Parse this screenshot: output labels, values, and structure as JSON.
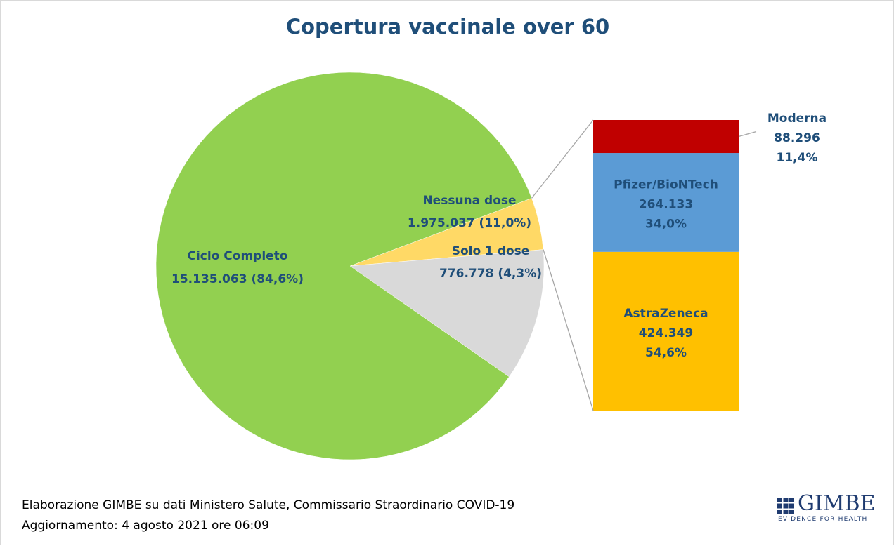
{
  "title": "Copertura vaccinale over 60",
  "footer": {
    "line1": "Elaborazione GIMBE su dati Ministero Salute, Commissario Straordinario COVID-19",
    "line2": "Aggiornamento: 4 agosto 2021 ore 06:09"
  },
  "logo": {
    "name": "GIMBE",
    "tagline": "EVIDENCE FOR HEALTH",
    "color": "#1f3b70"
  },
  "chart_data": [
    {
      "type": "pie",
      "title": "Copertura vaccinale over 60",
      "slices": [
        {
          "name": "Ciclo Completo",
          "value": 15135063,
          "value_label": "15.135.063",
          "percent_label": "84,6%",
          "color": "#92d050"
        },
        {
          "name": "Nessuna dose",
          "value": 1975037,
          "value_label": "1.975.037",
          "percent_label": "11,0%",
          "color": "#d9d9d9"
        },
        {
          "name": "Solo 1 dose",
          "value": 776778,
          "value_label": "776.778",
          "percent_label": "4,3%",
          "color": "#ffd966"
        }
      ]
    },
    {
      "type": "bar",
      "stacked": true,
      "breakdown_of": "Solo 1 dose",
      "segments": [
        {
          "name": "AstraZeneca",
          "value": 424349,
          "value_label": "424.349",
          "percent_label": "54,6%",
          "color": "#ffc000"
        },
        {
          "name": "Pfizer/BioNTech",
          "value": 264133,
          "value_label": "264.133",
          "percent_label": "34,0%",
          "color": "#5b9bd5"
        },
        {
          "name": "Moderna",
          "value": 88296,
          "value_label": "88.296",
          "percent_label": "11,4%",
          "color": "#c00000"
        }
      ]
    }
  ]
}
